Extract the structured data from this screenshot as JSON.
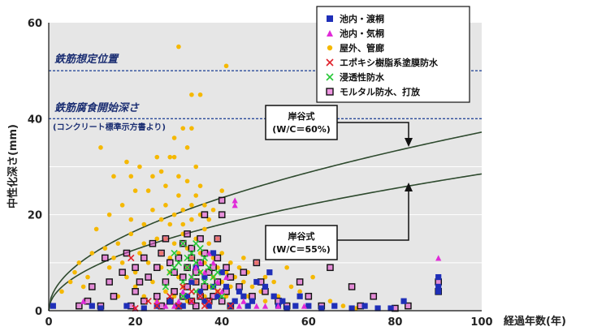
{
  "chart_data": {
    "type": "scatter",
    "xlabel": "経過年数(年)",
    "ylabel": "中性化深さ(mm)",
    "xlim": [
      0,
      100
    ],
    "ylim": [
      0,
      60
    ],
    "x_ticks": [
      "0",
      "20",
      "40",
      "60",
      "80",
      "100"
    ],
    "y_ticks": [
      "0",
      "20",
      "40",
      "60"
    ],
    "grid": true,
    "legend_position": "top-right",
    "reference_lines": [
      {
        "y": 50,
        "label": "鉄筋想定位置"
      },
      {
        "y": 40,
        "label": "鉄筋腐食開始深さ",
        "note": "(コンクリート標準示方書より)"
      }
    ],
    "curves": [
      {
        "label_line1": "岸谷式",
        "label_line2": "(W/C＝60%)",
        "coefficient": 3.72,
        "color": "#2e4a2e"
      },
      {
        "label_line1": "岸谷式",
        "label_line2": "(W/C＝55%)",
        "coefficient": 2.85,
        "color": "#2e4a2e"
      }
    ],
    "series": [
      {
        "name": "池内・渡桐",
        "marker": "square",
        "color": "#1f2fb8",
        "points": [
          [
            1,
            1
          ],
          [
            10,
            1
          ],
          [
            12,
            0.5
          ],
          [
            18,
            1
          ],
          [
            22,
            0.5
          ],
          [
            25,
            1
          ],
          [
            28,
            2
          ],
          [
            30,
            1
          ],
          [
            32,
            3
          ],
          [
            33,
            6
          ],
          [
            35,
            4
          ],
          [
            36,
            2
          ],
          [
            38,
            5
          ],
          [
            39,
            3
          ],
          [
            40,
            8
          ],
          [
            41,
            5
          ],
          [
            43,
            2
          ],
          [
            44,
            4
          ],
          [
            45,
            3
          ],
          [
            47,
            2
          ],
          [
            48,
            6
          ],
          [
            50,
            5
          ],
          [
            51,
            8
          ],
          [
            52,
            3
          ],
          [
            53,
            1
          ],
          [
            55,
            0.5
          ],
          [
            57,
            1
          ],
          [
            58,
            3
          ],
          [
            60,
            1
          ],
          [
            63,
            0.5
          ],
          [
            66,
            1
          ],
          [
            70,
            0.5
          ],
          [
            73,
            1
          ],
          [
            76,
            0.5
          ],
          [
            79,
            0.5
          ],
          [
            82,
            2
          ],
          [
            90,
            5
          ],
          [
            90,
            7
          ],
          [
            90,
            4
          ],
          [
            42,
            1
          ],
          [
            46,
            1
          ],
          [
            54,
            2
          ],
          [
            36,
            7
          ],
          [
            34,
            9
          ],
          [
            38,
            12
          ],
          [
            37,
            1
          ],
          [
            31,
            1
          ]
        ]
      },
      {
        "name": "池内・気桐",
        "marker": "triangle",
        "color": "#e02ad8",
        "points": [
          [
            8,
            2
          ],
          [
            20,
            0.5
          ],
          [
            27,
            1
          ],
          [
            30,
            2
          ],
          [
            31,
            4
          ],
          [
            33,
            7
          ],
          [
            34,
            9
          ],
          [
            35,
            10
          ],
          [
            36,
            8
          ],
          [
            37,
            12
          ],
          [
            38,
            10
          ],
          [
            39,
            6
          ],
          [
            40,
            4
          ],
          [
            41,
            7
          ],
          [
            43,
            22
          ],
          [
            43,
            23
          ],
          [
            44,
            1
          ],
          [
            45,
            2
          ],
          [
            50,
            1
          ],
          [
            53,
            1
          ],
          [
            59,
            1
          ],
          [
            90,
            11
          ],
          [
            48,
            1
          ],
          [
            33,
            2
          ],
          [
            29,
            1
          ],
          [
            25,
            2
          ]
        ]
      },
      {
        "name": "屋外、管廊",
        "marker": "circle",
        "color": "#f5b800",
        "points": [
          [
            3,
            4
          ],
          [
            5,
            6
          ],
          [
            6,
            8
          ],
          [
            7,
            10
          ],
          [
            8,
            5
          ],
          [
            9,
            7
          ],
          [
            10,
            12
          ],
          [
            11,
            17
          ],
          [
            12,
            34
          ],
          [
            13,
            13
          ],
          [
            14,
            9
          ],
          [
            14,
            20
          ],
          [
            15,
            28
          ],
          [
            16,
            14
          ],
          [
            16,
            3
          ],
          [
            17,
            22
          ],
          [
            17,
            10
          ],
          [
            18,
            31
          ],
          [
            18,
            7
          ],
          [
            19,
            16
          ],
          [
            19,
            19
          ],
          [
            20,
            8
          ],
          [
            20,
            25
          ],
          [
            20,
            5
          ],
          [
            21,
            12
          ],
          [
            21,
            30
          ],
          [
            22,
            14
          ],
          [
            22,
            3
          ],
          [
            22,
            18
          ],
          [
            23,
            25
          ],
          [
            23,
            10
          ],
          [
            24,
            6
          ],
          [
            24,
            21
          ],
          [
            24,
            28
          ],
          [
            25,
            15
          ],
          [
            25,
            2
          ],
          [
            25,
            32
          ],
          [
            26,
            9
          ],
          [
            26,
            19
          ],
          [
            26,
            12
          ],
          [
            27,
            4
          ],
          [
            27,
            22
          ],
          [
            27,
            26
          ],
          [
            27,
            15
          ],
          [
            28,
            8
          ],
          [
            28,
            32
          ],
          [
            28,
            18
          ],
          [
            28,
            11
          ],
          [
            29,
            3
          ],
          [
            29,
            14
          ],
          [
            29,
            20
          ],
          [
            29,
            36
          ],
          [
            30,
            7
          ],
          [
            30,
            24
          ],
          [
            30,
            12
          ],
          [
            30,
            28
          ],
          [
            30,
            55
          ],
          [
            31,
            5
          ],
          [
            31,
            16
          ],
          [
            31,
            18
          ],
          [
            31,
            38
          ],
          [
            31,
            21
          ],
          [
            32,
            9
          ],
          [
            32,
            13
          ],
          [
            32,
            27
          ],
          [
            32,
            34
          ],
          [
            32,
            2
          ],
          [
            33,
            19
          ],
          [
            33,
            22
          ],
          [
            33,
            11
          ],
          [
            33,
            45
          ],
          [
            34,
            6
          ],
          [
            34,
            15
          ],
          [
            34,
            24
          ],
          [
            34,
            30
          ],
          [
            35,
            8
          ],
          [
            35,
            12
          ],
          [
            35,
            20
          ],
          [
            35,
            45
          ],
          [
            35,
            26
          ],
          [
            36,
            3
          ],
          [
            36,
            10
          ],
          [
            36,
            17
          ],
          [
            36,
            22
          ],
          [
            37,
            5
          ],
          [
            37,
            14
          ],
          [
            37,
            19
          ],
          [
            38,
            7
          ],
          [
            38,
            11
          ],
          [
            38,
            21
          ],
          [
            39,
            4
          ],
          [
            39,
            9
          ],
          [
            39,
            15
          ],
          [
            40,
            6
          ],
          [
            40,
            12
          ],
          [
            40,
            25
          ],
          [
            41,
            8
          ],
          [
            41,
            3
          ],
          [
            41,
            51
          ],
          [
            42,
            10
          ],
          [
            42,
            5
          ],
          [
            43,
            7
          ],
          [
            43,
            2
          ],
          [
            44,
            9
          ],
          [
            44,
            4
          ],
          [
            45,
            6
          ],
          [
            45,
            11
          ],
          [
            46,
            3
          ],
          [
            46,
            8
          ],
          [
            47,
            5
          ],
          [
            48,
            10
          ],
          [
            49,
            4
          ],
          [
            50,
            7
          ],
          [
            50,
            2
          ],
          [
            52,
            6
          ],
          [
            53,
            3
          ],
          [
            55,
            9
          ],
          [
            56,
            5
          ],
          [
            58,
            4
          ],
          [
            61,
            7
          ],
          [
            65,
            2
          ],
          [
            68,
            1
          ],
          [
            71,
            0.5
          ],
          [
            15,
            11
          ],
          [
            19,
            28
          ],
          [
            26,
            29
          ],
          [
            29,
            32
          ],
          [
            33,
            38
          ]
        ]
      },
      {
        "name": "エポキシ樹脂系塗膜防水",
        "marker": "x",
        "color": "#e0202a",
        "points": [
          [
            19,
            11
          ],
          [
            20,
            0.5
          ],
          [
            23,
            2
          ],
          [
            25,
            1
          ],
          [
            28,
            3
          ],
          [
            30,
            1
          ],
          [
            31,
            5
          ],
          [
            33,
            4
          ],
          [
            33,
            2
          ],
          [
            35,
            3
          ],
          [
            36,
            1
          ],
          [
            37,
            2
          ],
          [
            39,
            4
          ],
          [
            42,
            1
          ]
        ]
      },
      {
        "name": "浸透性防水",
        "marker": "x",
        "color": "#28c838",
        "points": [
          [
            27,
            5
          ],
          [
            28,
            8
          ],
          [
            29,
            12
          ],
          [
            30,
            10
          ],
          [
            31,
            6
          ],
          [
            31,
            14
          ],
          [
            32,
            9
          ],
          [
            32,
            11
          ],
          [
            33,
            12
          ],
          [
            33,
            7
          ],
          [
            34,
            10
          ],
          [
            34,
            4
          ],
          [
            35,
            8
          ],
          [
            35,
            13
          ],
          [
            36,
            6
          ],
          [
            36,
            11
          ],
          [
            37,
            9
          ],
          [
            38,
            7
          ],
          [
            38,
            5
          ],
          [
            39,
            8
          ],
          [
            40,
            3
          ],
          [
            31,
            3
          ],
          [
            29,
            9
          ],
          [
            34,
            14
          ]
        ]
      },
      {
        "name": "モルタル防水、打放",
        "marker": "open-square",
        "color": "#111111",
        "points": [
          [
            7,
            1
          ],
          [
            9,
            2
          ],
          [
            10,
            5
          ],
          [
            12,
            1
          ],
          [
            13,
            11
          ],
          [
            14,
            6
          ],
          [
            15,
            3
          ],
          [
            17,
            8
          ],
          [
            18,
            12
          ],
          [
            19,
            1
          ],
          [
            20,
            4
          ],
          [
            20,
            9
          ],
          [
            21,
            6
          ],
          [
            22,
            2
          ],
          [
            22,
            11
          ],
          [
            23,
            7
          ],
          [
            24,
            14
          ],
          [
            25,
            3
          ],
          [
            25,
            9
          ],
          [
            26,
            1
          ],
          [
            26,
            12
          ],
          [
            27,
            6
          ],
          [
            27,
            15
          ],
          [
            28,
            2
          ],
          [
            28,
            10
          ],
          [
            29,
            4
          ],
          [
            29,
            8
          ],
          [
            30,
            11
          ],
          [
            30,
            1
          ],
          [
            31,
            7
          ],
          [
            31,
            3
          ],
          [
            31,
            14
          ],
          [
            32,
            5
          ],
          [
            32,
            9
          ],
          [
            32,
            16
          ],
          [
            33,
            2
          ],
          [
            33,
            11
          ],
          [
            33,
            13
          ],
          [
            34,
            6
          ],
          [
            34,
            8
          ],
          [
            34,
            1
          ],
          [
            35,
            3
          ],
          [
            35,
            10
          ],
          [
            35,
            15
          ],
          [
            36,
            5
          ],
          [
            36,
            12
          ],
          [
            37,
            2
          ],
          [
            37,
            8
          ],
          [
            38,
            9
          ],
          [
            38,
            3
          ],
          [
            39,
            11
          ],
          [
            39,
            6
          ],
          [
            40,
            2
          ],
          [
            40,
            20
          ],
          [
            40,
            23
          ],
          [
            41,
            4
          ],
          [
            41,
            9
          ],
          [
            42,
            1
          ],
          [
            42,
            7
          ],
          [
            44,
            5
          ],
          [
            45,
            8
          ],
          [
            47,
            3
          ],
          [
            48,
            10
          ],
          [
            49,
            6
          ],
          [
            50,
            4
          ],
          [
            53,
            2
          ],
          [
            55,
            1
          ],
          [
            58,
            6
          ],
          [
            60,
            3
          ],
          [
            63,
            1
          ],
          [
            65,
            9
          ],
          [
            70,
            5
          ],
          [
            72,
            1
          ],
          [
            75,
            3
          ],
          [
            80,
            0.5
          ],
          [
            83,
            1
          ],
          [
            90,
            6
          ],
          [
            90,
            4
          ],
          [
            36,
            20
          ],
          [
            39,
            15
          ]
        ]
      }
    ]
  },
  "callouts": [
    {
      "line1": "岸谷式",
      "line2": "(W/C＝60%)"
    },
    {
      "line1": "岸谷式",
      "line2": "(W/C＝55%)"
    }
  ]
}
